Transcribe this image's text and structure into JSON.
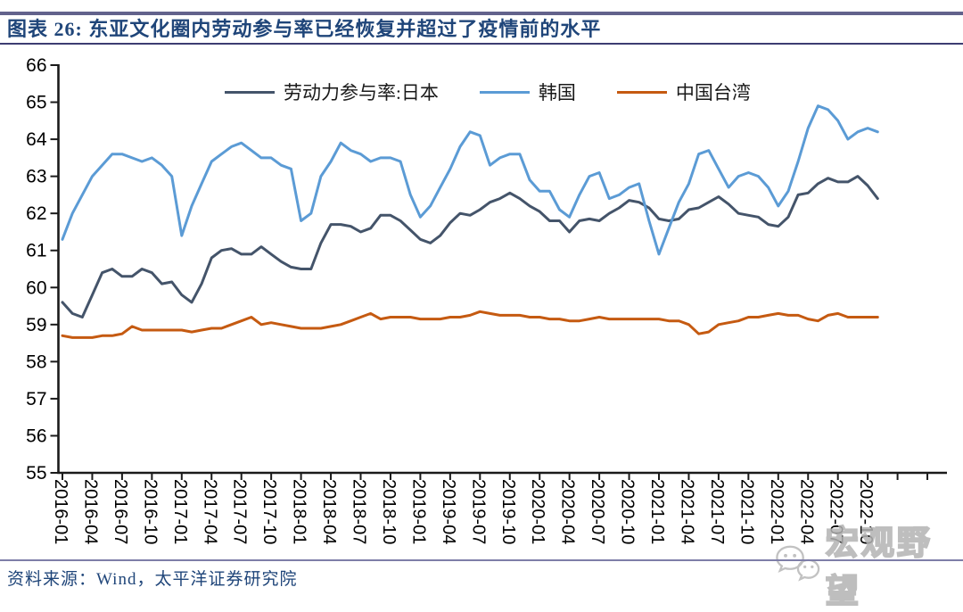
{
  "header": {
    "title": "图表 26:  东亚文化圈内劳动参与率已经恢复并超过了疫情前的水平"
  },
  "footer": {
    "source": "资料来源：Wind，太平洋证券研究院"
  },
  "watermark": {
    "icon": "wechat-icon",
    "text": "宏观野望"
  },
  "chart_data": {
    "type": "line",
    "title": "",
    "xlabel": "",
    "ylabel": "",
    "ylim": [
      55,
      66
    ],
    "grid": false,
    "legend_position": "top-center",
    "axis_color": "#1a1a1a",
    "x_start_month": "2016-01",
    "x_tick_labels": [
      "2016-01",
      "2016-04",
      "2016-07",
      "2016-10",
      "2017-01",
      "2017-04",
      "2017-07",
      "2017-10",
      "2018-01",
      "2018-04",
      "2018-07",
      "2018-10",
      "2019-01",
      "2019-04",
      "2019-07",
      "2019-10",
      "2020-01",
      "2020-04",
      "2020-07",
      "2020-10",
      "2021-01",
      "2021-04",
      "2021-07",
      "2021-10",
      "2022-01",
      "2022-04",
      "2022-07",
      "2022-10"
    ],
    "y_ticks": [
      55,
      56,
      57,
      58,
      59,
      60,
      61,
      62,
      63,
      64,
      65,
      66
    ],
    "series": [
      {
        "name": "劳动力参与率:日本",
        "color": "#44546A",
        "values": [
          59.6,
          59.3,
          59.2,
          59.8,
          60.4,
          60.5,
          60.3,
          60.3,
          60.5,
          60.4,
          60.1,
          60.15,
          59.8,
          59.6,
          60.1,
          60.8,
          61.0,
          61.05,
          60.9,
          60.9,
          61.1,
          60.9,
          60.7,
          60.55,
          60.5,
          60.5,
          61.2,
          61.7,
          61.7,
          61.65,
          61.5,
          61.6,
          61.95,
          61.95,
          61.8,
          61.55,
          61.3,
          61.2,
          61.4,
          61.75,
          62.0,
          61.95,
          62.1,
          62.3,
          62.4,
          62.55,
          62.4,
          62.2,
          62.05,
          61.8,
          61.8,
          61.5,
          61.8,
          61.85,
          61.8,
          62.0,
          62.15,
          62.35,
          62.3,
          62.15,
          61.85,
          61.8,
          61.85,
          62.1,
          62.15,
          62.3,
          62.45,
          62.25,
          62.0,
          61.95,
          61.9,
          61.7,
          61.65,
          61.9,
          62.5,
          62.55,
          62.8,
          62.95,
          62.85,
          62.85,
          63.0,
          62.75,
          62.4
        ]
      },
      {
        "name": "韩国",
        "color": "#5B9BD5",
        "values": [
          61.3,
          62.0,
          62.5,
          63.0,
          63.3,
          63.6,
          63.6,
          63.5,
          63.4,
          63.5,
          63.3,
          63.0,
          61.4,
          62.2,
          62.8,
          63.4,
          63.6,
          63.8,
          63.9,
          63.7,
          63.5,
          63.5,
          63.3,
          63.2,
          61.8,
          62.0,
          63.0,
          63.4,
          63.9,
          63.7,
          63.6,
          63.4,
          63.5,
          63.5,
          63.4,
          62.5,
          61.9,
          62.2,
          62.7,
          63.2,
          63.8,
          64.2,
          64.1,
          63.3,
          63.5,
          63.6,
          63.6,
          62.9,
          62.6,
          62.6,
          62.1,
          61.9,
          62.5,
          63.0,
          63.1,
          62.4,
          62.5,
          62.7,
          62.8,
          61.8,
          60.9,
          61.6,
          62.3,
          62.8,
          63.6,
          63.7,
          63.2,
          62.7,
          63.0,
          63.1,
          63.0,
          62.7,
          62.2,
          62.6,
          63.4,
          64.3,
          64.9,
          64.8,
          64.5,
          64.0,
          64.2,
          64.3,
          64.2
        ]
      },
      {
        "name": "中国台湾",
        "color": "#C55A11",
        "values": [
          58.7,
          58.65,
          58.65,
          58.65,
          58.7,
          58.7,
          58.75,
          58.95,
          58.85,
          58.85,
          58.85,
          58.85,
          58.85,
          58.8,
          58.85,
          58.9,
          58.9,
          59.0,
          59.1,
          59.2,
          59.0,
          59.05,
          59.0,
          58.95,
          58.9,
          58.9,
          58.9,
          58.95,
          59.0,
          59.1,
          59.2,
          59.3,
          59.15,
          59.2,
          59.2,
          59.2,
          59.15,
          59.15,
          59.15,
          59.2,
          59.2,
          59.25,
          59.35,
          59.3,
          59.25,
          59.25,
          59.25,
          59.2,
          59.2,
          59.15,
          59.15,
          59.1,
          59.1,
          59.15,
          59.2,
          59.15,
          59.15,
          59.15,
          59.15,
          59.15,
          59.15,
          59.1,
          59.1,
          59.0,
          58.75,
          58.8,
          59.0,
          59.05,
          59.1,
          59.2,
          59.2,
          59.25,
          59.3,
          59.25,
          59.25,
          59.15,
          59.1,
          59.25,
          59.3,
          59.2,
          59.2,
          59.2,
          59.2
        ]
      }
    ]
  }
}
